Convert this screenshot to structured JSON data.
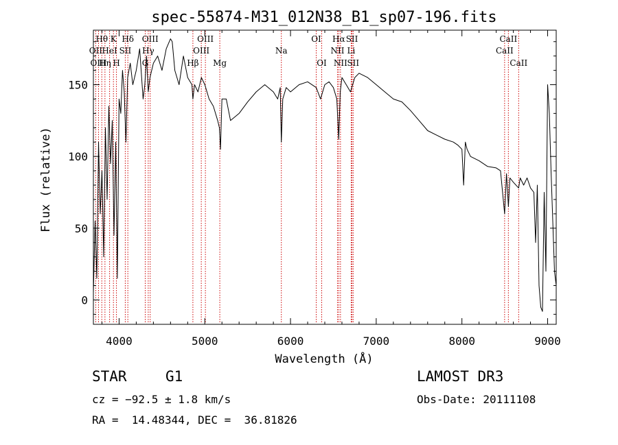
{
  "chart_data": {
    "type": "line",
    "title": "spec-55874-M31_012N38_B1_sp07-196.fits",
    "xlabel": "Wavelength (Å)",
    "ylabel": "Flux (relative)",
    "xlim": [
      3700,
      9100
    ],
    "ylim": [
      -17,
      188
    ],
    "x_ticks": [
      4000,
      5000,
      6000,
      7000,
      8000,
      9000
    ],
    "x_tick_labels": [
      "4000",
      "5000",
      "6000",
      "7000",
      "8000",
      "9000"
    ],
    "y_ticks": [
      0,
      50,
      100,
      150
    ],
    "y_tick_labels": [
      "0",
      "50",
      "100",
      "150"
    ],
    "line_color": "#000000",
    "marker_color": "#cc0000",
    "spectrum": {
      "x": [
        3700,
        3720,
        3740,
        3760,
        3780,
        3800,
        3820,
        3840,
        3860,
        3880,
        3900,
        3920,
        3940,
        3960,
        3980,
        4000,
        4020,
        4040,
        4060,
        4080,
        4100,
        4130,
        4160,
        4200,
        4240,
        4280,
        4300,
        4320,
        4340,
        4360,
        4400,
        4450,
        4500,
        4550,
        4600,
        4620,
        4650,
        4700,
        4750,
        4800,
        4850,
        4861,
        4880,
        4920,
        4960,
        5000,
        5050,
        5100,
        5150,
        5170,
        5183,
        5200,
        5250,
        5300,
        5400,
        5500,
        5600,
        5700,
        5800,
        5850,
        5880,
        5893,
        5910,
        5950,
        6000,
        6100,
        6200,
        6300,
        6350,
        6400,
        6450,
        6500,
        6540,
        6563,
        6580,
        6600,
        6650,
        6700,
        6750,
        6800,
        6900,
        7000,
        7100,
        7200,
        7300,
        7400,
        7500,
        7600,
        7700,
        7800,
        7900,
        7950,
        8000,
        8020,
        8040,
        8060,
        8100,
        8200,
        8300,
        8400,
        8450,
        8498,
        8520,
        8542,
        8560,
        8600,
        8662,
        8680,
        8720,
        8760,
        8800,
        8840,
        8860,
        8880,
        8900,
        8920,
        8940,
        8960,
        8980,
        9000,
        9020,
        9040,
        9060,
        9080,
        9100
      ],
      "y": [
        5,
        55,
        15,
        110,
        60,
        90,
        30,
        120,
        70,
        135,
        95,
        125,
        45,
        110,
        15,
        140,
        130,
        160,
        145,
        110,
        155,
        165,
        150,
        160,
        175,
        140,
        150,
        170,
        145,
        155,
        165,
        170,
        160,
        175,
        182,
        180,
        160,
        150,
        170,
        155,
        150,
        140,
        150,
        145,
        155,
        150,
        140,
        135,
        125,
        120,
        105,
        140,
        140,
        125,
        130,
        138,
        145,
        150,
        145,
        140,
        148,
        110,
        140,
        148,
        145,
        150,
        152,
        148,
        140,
        150,
        152,
        148,
        140,
        112,
        145,
        155,
        150,
        145,
        155,
        158,
        155,
        150,
        145,
        140,
        138,
        132,
        125,
        118,
        115,
        112,
        110,
        108,
        105,
        80,
        110,
        105,
        100,
        97,
        93,
        92,
        90,
        60,
        88,
        65,
        85,
        82,
        78,
        85,
        80,
        85,
        78,
        75,
        40,
        80,
        10,
        -5,
        -8,
        75,
        20,
        150,
        130,
        90,
        55,
        20,
        10
      ]
    },
    "lines": [
      {
        "name": "Hθ",
        "x": 3798,
        "row": 1
      },
      {
        "name": "OII",
        "x": 3727,
        "row": 2
      },
      {
        "name": "OIII",
        "x": 3760,
        "row": 3
      },
      {
        "name": "K",
        "x": 3934,
        "row": 1
      },
      {
        "name": "HeI",
        "x": 3889,
        "row": 2
      },
      {
        "name": "Hη",
        "x": 3835,
        "row": 3
      },
      {
        "name": "H",
        "x": 3969,
        "row": 3
      },
      {
        "name": "SII",
        "x": 4072,
        "row": 2
      },
      {
        "name": "Hδ",
        "x": 4102,
        "row": 1
      },
      {
        "name": "OIII",
        "x": 4363,
        "row": 1
      },
      {
        "name": "Hγ",
        "x": 4340,
        "row": 2
      },
      {
        "name": "G",
        "x": 4305,
        "row": 3
      },
      {
        "name": "Hβ",
        "x": 4861,
        "row": 3
      },
      {
        "name": "OIII",
        "x": 4959,
        "row": 2
      },
      {
        "name": "OIII",
        "x": 5007,
        "row": 1
      },
      {
        "name": "Mg",
        "x": 5175,
        "row": 3
      },
      {
        "name": "Na",
        "x": 5893,
        "row": 2
      },
      {
        "name": "OI",
        "x": 6300,
        "row": 1
      },
      {
        "name": "OI",
        "x": 6364,
        "row": 3
      },
      {
        "name": "Hα",
        "x": 6563,
        "row": 1
      },
      {
        "name": "NII",
        "x": 6548,
        "row": 2
      },
      {
        "name": "NII",
        "x": 6583,
        "row": 3
      },
      {
        "name": "SII",
        "x": 6717,
        "row": 1
      },
      {
        "name": "Li",
        "x": 6708,
        "row": 2
      },
      {
        "name": "SII",
        "x": 6731,
        "row": 3
      },
      {
        "name": "CaII",
        "x": 8542,
        "row": 1
      },
      {
        "name": "CaII",
        "x": 8498,
        "row": 2
      },
      {
        "name": "CaII",
        "x": 8662,
        "row": 3
      }
    ]
  },
  "footer": {
    "object_class": "STAR",
    "subclass": "G1",
    "survey": "LAMOST DR3",
    "cz": "cz = −92.5 ± 1.8 km/s",
    "obs_date": "Obs-Date: 20111108",
    "coords": "RA =  14.48344, DEC =  36.81826"
  }
}
